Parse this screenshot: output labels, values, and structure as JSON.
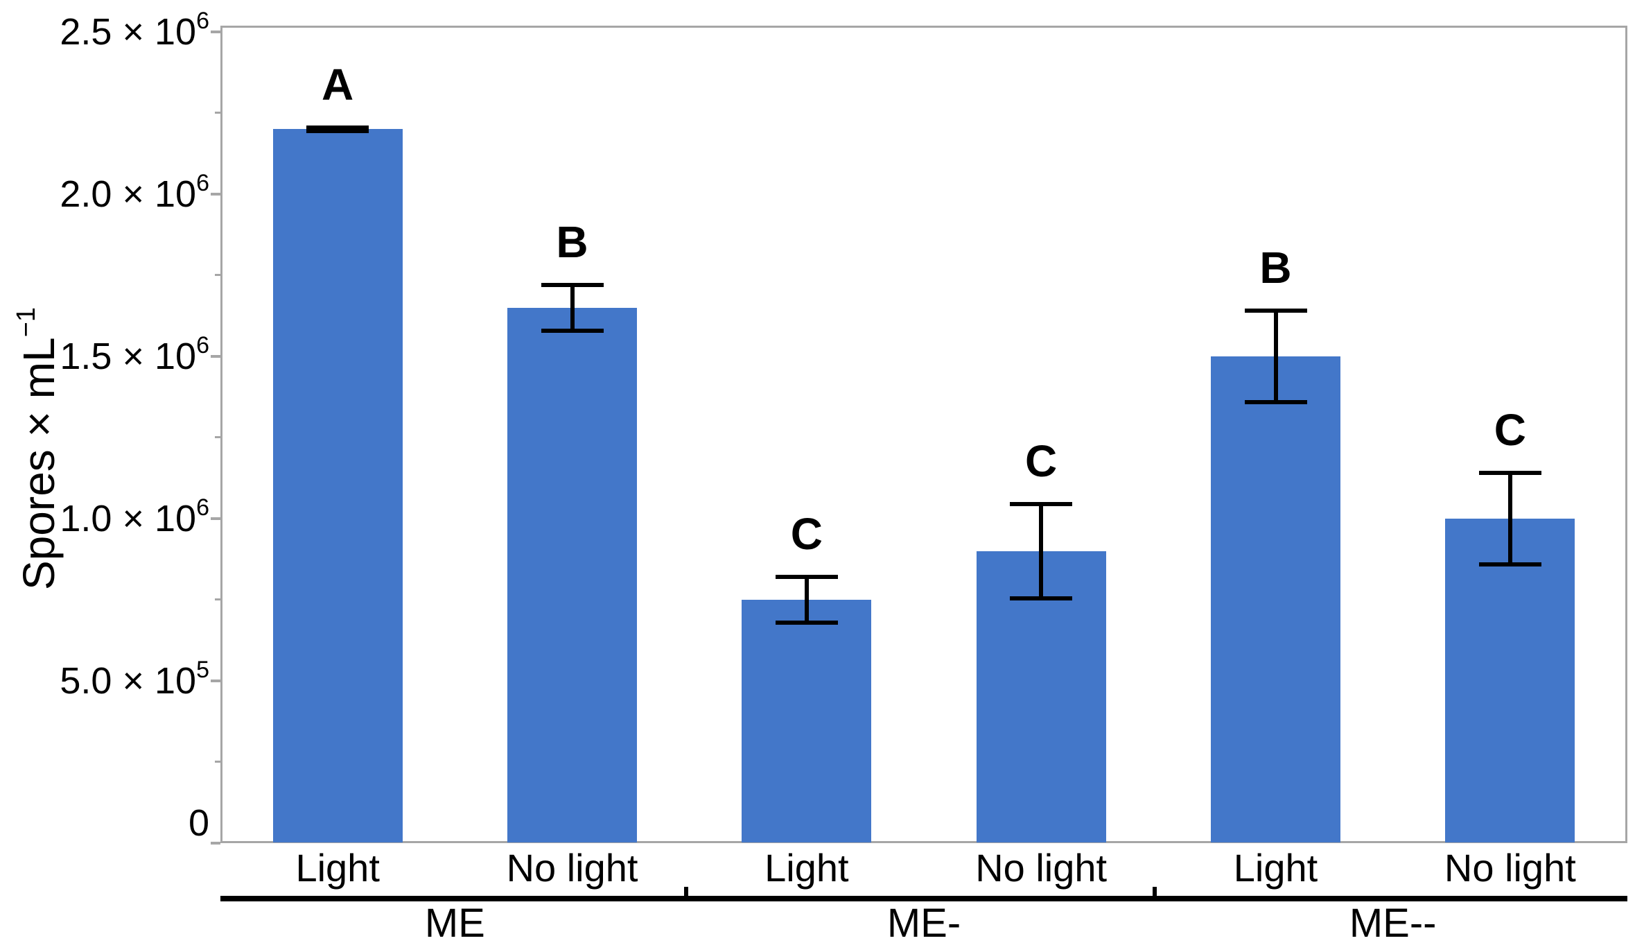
{
  "chart_data": {
    "type": "bar",
    "title": "",
    "ylabel_base": "Spores × mL",
    "ylabel_sup": "−1",
    "xlabel": "",
    "legend": "none",
    "grid": "off",
    "ylim_e6": [
      0,
      2.52
    ],
    "categories": [
      "ME Light",
      "ME No light",
      "ME- Light",
      "ME- No light",
      "ME-- Light",
      "ME-- No light"
    ],
    "values_e6": [
      2.2,
      1.65,
      0.75,
      0.9,
      1.5,
      1.0
    ],
    "groups": [
      {
        "label": "ME",
        "bars": [
          {
            "condition": "Light",
            "value_e6": 2.2,
            "error_e6": 0.005,
            "sig_letter": "A"
          },
          {
            "condition": "No light",
            "value_e6": 1.65,
            "error_e6": 0.07,
            "sig_letter": "B"
          }
        ]
      },
      {
        "label": "ME-",
        "bars": [
          {
            "condition": "Light",
            "value_e6": 0.75,
            "error_e6": 0.07,
            "sig_letter": "C"
          },
          {
            "condition": "No light",
            "value_e6": 0.9,
            "error_e6": 0.145,
            "sig_letter": "C"
          }
        ]
      },
      {
        "label": "ME--",
        "bars": [
          {
            "condition": "Light",
            "value_e6": 1.5,
            "error_e6": 0.14,
            "sig_letter": "B"
          },
          {
            "condition": "No light",
            "value_e6": 1.0,
            "error_e6": 0.14,
            "sig_letter": "C"
          }
        ]
      }
    ],
    "y_axis": {
      "unit_scale": "1e6",
      "major_ticks": [
        {
          "value_e6": 0,
          "base": "0",
          "sup": ""
        },
        {
          "value_e6": 0.5,
          "base": "5.0 × 10",
          "sup": "5"
        },
        {
          "value_e6": 1.0,
          "base": "1.0 × 10",
          "sup": "6"
        },
        {
          "value_e6": 1.5,
          "base": "1.5 × 10",
          "sup": "6"
        },
        {
          "value_e6": 2.0,
          "base": "2.0 × 10",
          "sup": "6"
        },
        {
          "value_e6": 2.5,
          "base": "2.5 × 10",
          "sup": "6"
        }
      ],
      "minor_ticks_e6": [
        0.25,
        0.75,
        1.25,
        1.75,
        2.25
      ]
    },
    "colors": {
      "bar": "#4377C9",
      "frame": "#A6A6A6",
      "error_bar": "#000000",
      "text": "#000000"
    }
  }
}
